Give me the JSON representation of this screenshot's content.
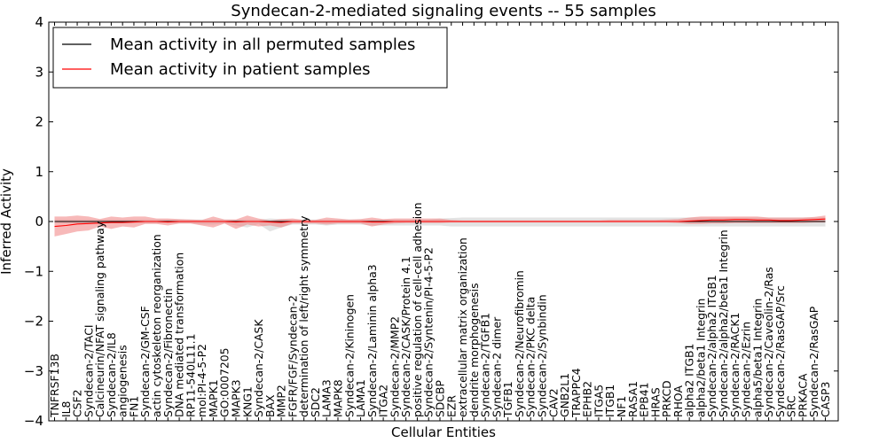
{
  "chart_data": {
    "type": "line",
    "title": "Syndecan-2-mediated signaling events -- 55 samples",
    "xlabel": "Cellular Entities",
    "ylabel": "Inferred Activity",
    "ylim": [
      -4,
      4
    ],
    "yticks": [
      -4,
      -3,
      -2,
      -1,
      0,
      1,
      2,
      3,
      4
    ],
    "legend_position": "top-left",
    "categories": [
      "TNFRSF13B",
      "IL8",
      "CSF2",
      "Syndecan-2/TACI",
      "Calcineurin/NFAT signaling pathway",
      "Syndecan-2/IL8",
      "angiogenesis",
      "FN1",
      "Syndecan-2/GM-CSF",
      "actin cytoskeleton reorganization",
      "Syndecan-2/Fibronectin",
      "DNA mediated transformation",
      "RP11-540L11.1",
      "mol:PI-4-5-P2",
      "MAPK1",
      "GO:0007205",
      "MAPK3",
      "KNG1",
      "Syndecan-2/CASK",
      "BAX",
      "MMP2",
      "FGFR/FGF/Syndecan-2",
      "determination of left/right symmetry",
      "SDC2",
      "LAMA3",
      "MAPK8",
      "Syndecan-2/Kininogen",
      "LAMA1",
      "Syndecan-2/Laminin alpha3",
      "ITGA2",
      "Syndecan-2/MMP2",
      "Syndecan-2/CASK/Protein 4.1",
      "positive regulation of cell-cell adhesion",
      "Syndecan-2/Syntenin/PI-4-5-P2",
      "SDCBP",
      "EZR",
      "extracellular matrix organization",
      "dendrite morphogenesis",
      "Syndecan-2/TGFB1",
      "Syndecan-2 dimer",
      "TGFB1",
      "Syndecan-2/Neurofibromin",
      "Syndecan-2/PKC delta",
      "Syndecan-2/Synbindin",
      "CAV2",
      "GNB2L1",
      "TRAPPC4",
      "EPHB2",
      "ITGA5",
      "ITGB1",
      "NF1",
      "RASA1",
      "EPB41",
      "HRAS",
      "PRKCD",
      "RHOA",
      "alpha2 ITGB1",
      "alpha2/beta1 Integrin",
      "Syndecan-2/alpha2 ITGB1",
      "Syndecan-2/alpha2/beta1 Integrin",
      "Syndecan-2/RACK1",
      "Syndecan-2/Ezrin",
      "alpha5/beta1 Integrin",
      "Syndecan-2/Caveolin-2/Ras",
      "Syndecan-2/RasGAP/Src",
      "SRC",
      "PRKACA",
      "Syndecan-2/RasGAP",
      "CASP3"
    ],
    "series": [
      {
        "name": "Mean activity in all permuted samples",
        "color": "#000000",
        "band_color": "#b0b0b0",
        "values": [
          0,
          0,
          0,
          0,
          0,
          0,
          0,
          0,
          0,
          0,
          0,
          0,
          0,
          0,
          0,
          0,
          0,
          0,
          0,
          0,
          0,
          0,
          0,
          0,
          0,
          0,
          0,
          0,
          0,
          0,
          0,
          0,
          0,
          0,
          0,
          0,
          0,
          0,
          0,
          0,
          0,
          0,
          0,
          0,
          0,
          0,
          0,
          0,
          0,
          0,
          0,
          0,
          0,
          0,
          0,
          0,
          0,
          0,
          0,
          0,
          0,
          0,
          0,
          0,
          0,
          0,
          0,
          0,
          0
        ],
        "band_upper": [
          0.04,
          0.04,
          0.04,
          0.04,
          0.04,
          0.04,
          0.04,
          0.04,
          0.04,
          0.04,
          0.04,
          0.04,
          0.04,
          0.04,
          0.04,
          0.04,
          0.04,
          0.04,
          0.04,
          0.06,
          0.05,
          0.04,
          0.04,
          0.04,
          0.04,
          0.04,
          0.04,
          0.04,
          0.04,
          0.04,
          0.04,
          0.04,
          0.04,
          0.04,
          0.06,
          0.07,
          0.08,
          0.08,
          0.08,
          0.08,
          0.08,
          0.08,
          0.08,
          0.08,
          0.08,
          0.08,
          0.08,
          0.08,
          0.08,
          0.08,
          0.08,
          0.08,
          0.08,
          0.08,
          0.08,
          0.08,
          0.08,
          0.08,
          0.08,
          0.08,
          0.08,
          0.08,
          0.08,
          0.08,
          0.08,
          0.08,
          0.08,
          0.08,
          0.08
        ],
        "band_lower": [
          -0.04,
          -0.04,
          -0.04,
          -0.04,
          -0.04,
          -0.04,
          -0.04,
          -0.04,
          -0.04,
          -0.04,
          -0.04,
          -0.04,
          -0.04,
          -0.06,
          -0.06,
          -0.04,
          -0.08,
          -0.12,
          -0.05,
          -0.2,
          -0.12,
          -0.06,
          -0.06,
          -0.06,
          -0.08,
          -0.06,
          -0.06,
          -0.06,
          -0.08,
          -0.08,
          -0.08,
          -0.08,
          -0.08,
          -0.08,
          -0.08,
          -0.1,
          -0.1,
          -0.1,
          -0.1,
          -0.1,
          -0.1,
          -0.1,
          -0.1,
          -0.1,
          -0.1,
          -0.1,
          -0.1,
          -0.1,
          -0.1,
          -0.1,
          -0.1,
          -0.1,
          -0.1,
          -0.1,
          -0.1,
          -0.1,
          -0.1,
          -0.1,
          -0.1,
          -0.1,
          -0.1,
          -0.1,
          -0.1,
          -0.1,
          -0.1,
          -0.1,
          -0.1,
          -0.1,
          -0.1
        ]
      },
      {
        "name": "Mean activity in patient samples",
        "color": "#ff0000",
        "band_color": "#f08080",
        "values": [
          -0.1,
          -0.08,
          -0.05,
          -0.04,
          -0.03,
          -0.02,
          -0.02,
          -0.01,
          0,
          0,
          -0.01,
          0,
          0,
          0,
          0,
          0,
          -0.01,
          0,
          0,
          -0.01,
          -0.02,
          0,
          0,
          0,
          0,
          0,
          0,
          0,
          -0.01,
          -0.01,
          0,
          0,
          0,
          0,
          0,
          0,
          0,
          0,
          0,
          0,
          0,
          0,
          0,
          0,
          0,
          0,
          0,
          0,
          0,
          0,
          0,
          0,
          0,
          0,
          0,
          0,
          0.01,
          0.02,
          0.03,
          0.03,
          0.04,
          0.04,
          0.03,
          0.03,
          0.02,
          0.02,
          0.03,
          0.04,
          0.05
        ],
        "band_upper": [
          0.1,
          0.1,
          0.12,
          0.1,
          0.05,
          0.1,
          0.08,
          0.1,
          0.1,
          0.06,
          0.06,
          0.05,
          0.04,
          0.03,
          0.1,
          0.04,
          0.04,
          0.12,
          0.06,
          0.02,
          0.05,
          0.06,
          0.03,
          0.03,
          0.08,
          0.06,
          0.04,
          0.05,
          0.08,
          0.05,
          0.06,
          0.06,
          0.06,
          0.06,
          0.06,
          0.03,
          0.02,
          0.02,
          0.02,
          0.02,
          0.02,
          0.02,
          0.02,
          0.02,
          0.02,
          0.02,
          0.02,
          0.02,
          0.02,
          0.03,
          0.03,
          0.03,
          0.03,
          0.03,
          0.04,
          0.05,
          0.08,
          0.1,
          0.1,
          0.1,
          0.1,
          0.1,
          0.1,
          0.08,
          0.08,
          0.08,
          0.08,
          0.09,
          0.12
        ],
        "band_lower": [
          -0.3,
          -0.25,
          -0.2,
          -0.18,
          -0.1,
          -0.15,
          -0.1,
          -0.12,
          -0.05,
          -0.05,
          -0.08,
          -0.04,
          -0.04,
          -0.08,
          -0.12,
          -0.04,
          -0.15,
          -0.06,
          -0.1,
          -0.08,
          -0.12,
          -0.04,
          -0.04,
          -0.04,
          -0.06,
          -0.04,
          -0.04,
          -0.04,
          -0.1,
          -0.06,
          -0.04,
          -0.03,
          -0.03,
          -0.03,
          -0.03,
          -0.02,
          -0.02,
          -0.02,
          -0.02,
          -0.02,
          -0.02,
          -0.02,
          -0.02,
          -0.02,
          -0.02,
          -0.02,
          -0.02,
          -0.02,
          -0.02,
          -0.02,
          -0.02,
          -0.02,
          -0.02,
          -0.02,
          -0.02,
          -0.03,
          -0.05,
          -0.05,
          -0.04,
          -0.04,
          -0.03,
          -0.03,
          -0.03,
          -0.03,
          -0.03,
          -0.03,
          -0.03,
          -0.02,
          -0.02
        ]
      }
    ]
  }
}
